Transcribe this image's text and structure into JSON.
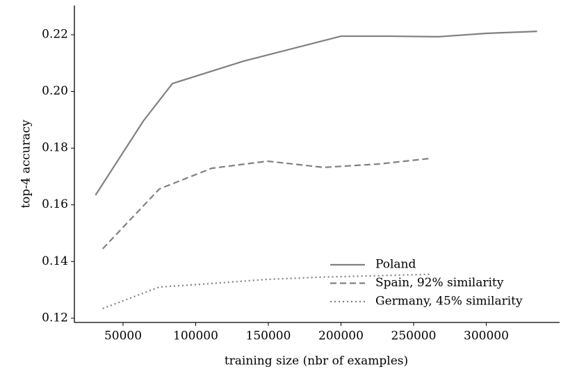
{
  "chart_data": {
    "type": "line",
    "x_label": "training size (nbr of examples)",
    "y_label": "top-4 accuracy",
    "series": [
      {
        "name": "Poland",
        "color": "#808080",
        "dash": "solid",
        "x": [
          31000,
          64000,
          84000,
          133000,
          200000,
          233000,
          267000,
          300000,
          335000
        ],
        "values": [
          0.1634,
          0.1896,
          0.2028,
          0.2107,
          0.2195,
          0.2195,
          0.2193,
          0.2205,
          0.2212
        ]
      },
      {
        "name": "Spain, 92% similarity",
        "color": "#808080",
        "dash": "dashed",
        "x": [
          36000,
          75000,
          111000,
          149500,
          188000,
          226000,
          262000
        ],
        "values": [
          0.1445,
          0.1656,
          0.1729,
          0.1754,
          0.1732,
          0.1744,
          0.1764
        ]
      },
      {
        "name": "Germany, 45% similarity",
        "color": "#808080",
        "dash": "dotted",
        "x": [
          36000,
          75000,
          110000,
          149000,
          187000,
          226000,
          262000
        ],
        "values": [
          0.1234,
          0.131,
          0.1322,
          0.1337,
          0.1345,
          0.135,
          0.1355
        ]
      }
    ],
    "xlim": [
      16500,
      350500
    ],
    "ylim": [
      0.1185,
      0.2303
    ],
    "xticks": [
      50000,
      100000,
      150000,
      200000,
      250000,
      300000
    ],
    "yticks": [
      0.12,
      0.14,
      0.16,
      0.18,
      {
        "value": 0.2,
        "label": "0.20"
      },
      0.22
    ],
    "legend": "lower-right",
    "grid": false
  }
}
